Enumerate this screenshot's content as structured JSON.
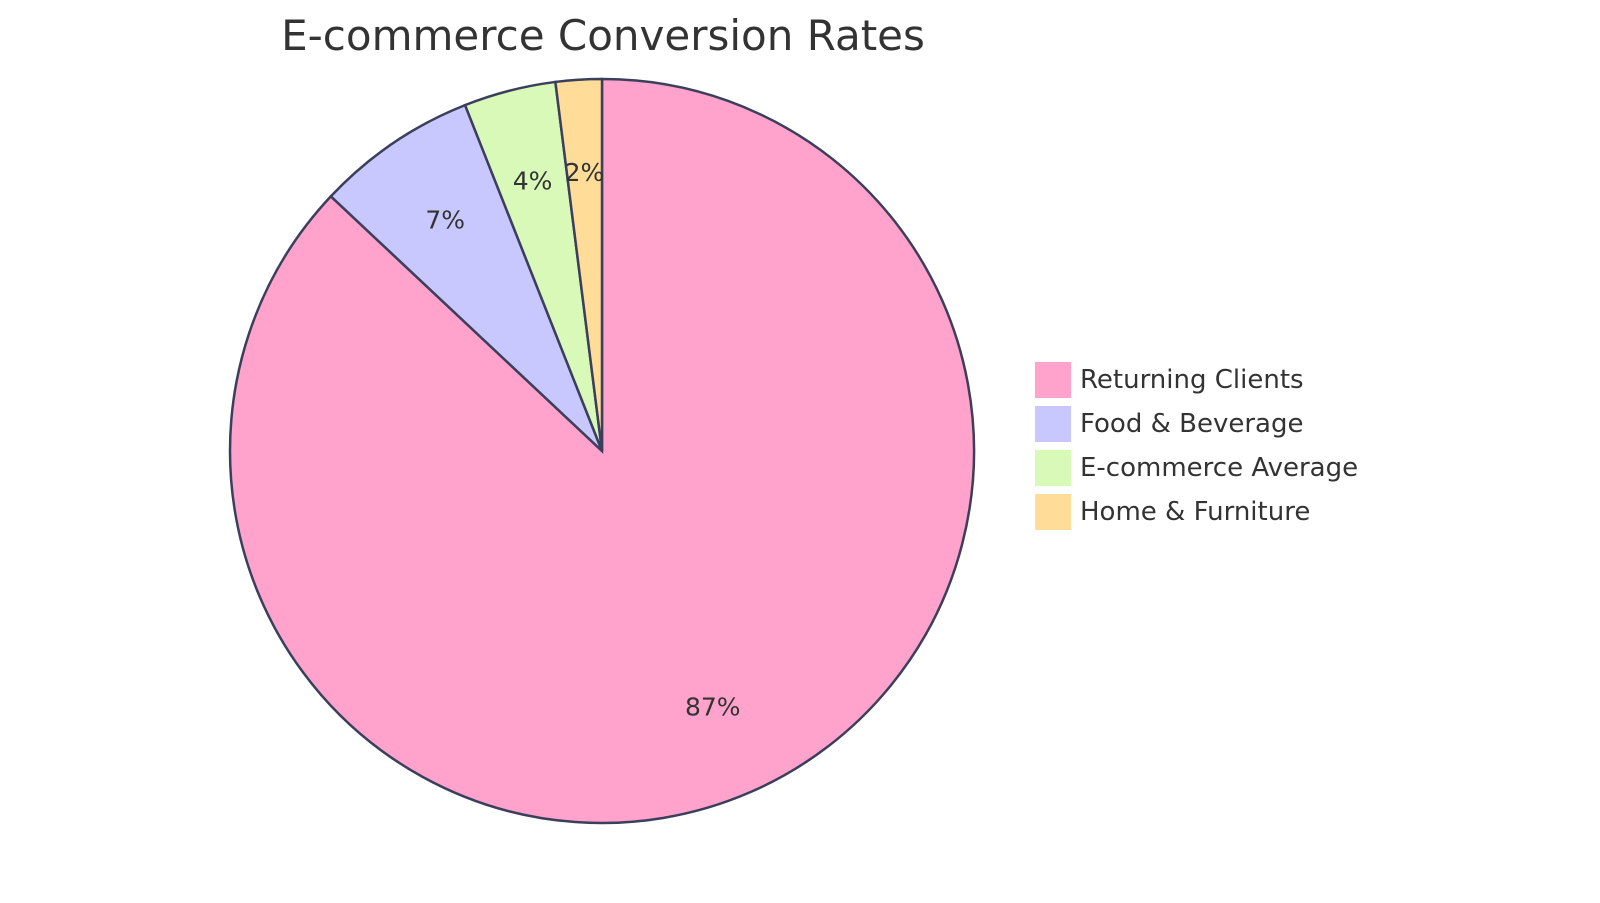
{
  "chart_data": {
    "type": "pie",
    "title": "E-commerce Conversion Rates",
    "slices": [
      {
        "label": "Returning Clients",
        "value": 87,
        "value_label": "87%",
        "color": "#ffa3cc"
      },
      {
        "label": "Food & Beverage",
        "value": 7,
        "value_label": "7%",
        "color": "#c8c8ff"
      },
      {
        "label": "E-commerce Average",
        "value": 4,
        "value_label": "4%",
        "color": "#d9f9b9"
      },
      {
        "label": "Home & Furniture",
        "value": 2,
        "value_label": "2%",
        "color": "#ffdd99"
      }
    ],
    "legend": "right",
    "start_angle": "12 o'clock",
    "direction": "clockwise"
  }
}
